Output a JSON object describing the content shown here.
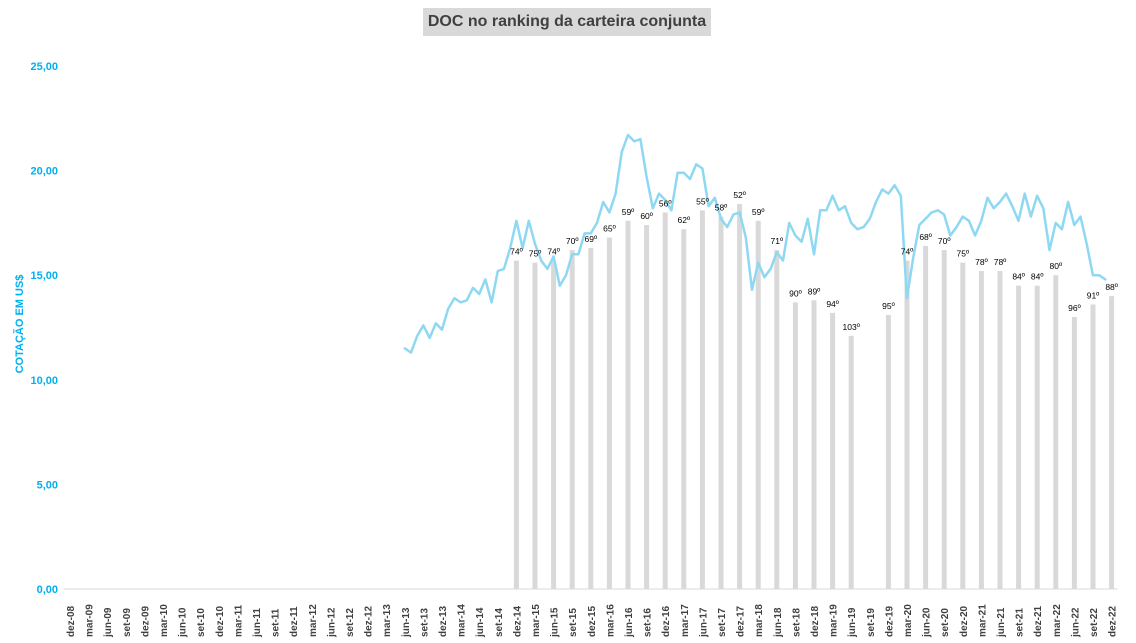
{
  "chart_data": {
    "type": "bar+line",
    "title": "DOC no ranking da carteira conjunta",
    "ylabel": "COTAÇÃO EM US$",
    "ylim": [
      0,
      25
    ],
    "y_ticks": [
      "0,00",
      "5,00",
      "10,00",
      "15,00",
      "20,00",
      "25,00"
    ],
    "x_tick_labels": [
      "dez-08",
      "mar-09",
      "jun-09",
      "set-09",
      "dez-09",
      "mar-10",
      "jun-10",
      "set-10",
      "dez-10",
      "mar-11",
      "jun-11",
      "set-11",
      "dez-11",
      "mar-12",
      "jun-12",
      "set-12",
      "dez-12",
      "mar-13",
      "jun-13",
      "set-13",
      "dez-13",
      "mar-14",
      "jun-14",
      "set-14",
      "dez-14",
      "mar-15",
      "jun-15",
      "set-15",
      "dez-15",
      "mar-16",
      "jun-16",
      "set-16",
      "dez-16",
      "mar-17",
      "jun-17",
      "set-17",
      "dez-17",
      "mar-18",
      "jun-18",
      "set-18",
      "dez-18",
      "mar-19",
      "jun-19",
      "set-19",
      "dez-19",
      "mar-20",
      "jun-20",
      "set-20",
      "dez-20",
      "mar-21",
      "jun-21",
      "set-21",
      "dez-21",
      "mar-22",
      "jun-22",
      "set-22",
      "dez-22"
    ],
    "grid": false,
    "bars": [
      {
        "q": 24,
        "value": 15.7,
        "label": "74º"
      },
      {
        "q": 25,
        "value": 15.6,
        "label": "75º"
      },
      {
        "q": 26,
        "value": 15.7,
        "label": "74º"
      },
      {
        "q": 27,
        "value": 16.2,
        "label": "70º"
      },
      {
        "q": 28,
        "value": 16.3,
        "label": "69º"
      },
      {
        "q": 29,
        "value": 16.8,
        "label": "65º"
      },
      {
        "q": 30,
        "value": 17.6,
        "label": "59º"
      },
      {
        "q": 31,
        "value": 17.4,
        "label": "60º"
      },
      {
        "q": 32,
        "value": 18.0,
        "label": "56º"
      },
      {
        "q": 33,
        "value": 17.2,
        "label": "62º"
      },
      {
        "q": 34,
        "value": 18.1,
        "label": "55º"
      },
      {
        "q": 35,
        "value": 17.8,
        "label": "58º"
      },
      {
        "q": 36,
        "value": 18.4,
        "label": "52º"
      },
      {
        "q": 37,
        "value": 17.6,
        "label": "59º"
      },
      {
        "q": 38,
        "value": 16.2,
        "label": "71º"
      },
      {
        "q": 39,
        "value": 13.7,
        "label": "90º"
      },
      {
        "q": 40,
        "value": 13.8,
        "label": "89º"
      },
      {
        "q": 41,
        "value": 13.2,
        "label": "94º"
      },
      {
        "q": 42,
        "value": 12.1,
        "label": "103º"
      },
      {
        "q": 44,
        "value": 13.1,
        "label": "95º"
      },
      {
        "q": 45,
        "value": 15.7,
        "label": "74º"
      },
      {
        "q": 46,
        "value": 16.4,
        "label": "68º"
      },
      {
        "q": 47,
        "value": 16.2,
        "label": "70º"
      },
      {
        "q": 48,
        "value": 15.6,
        "label": "75º"
      },
      {
        "q": 49,
        "value": 15.2,
        "label": "78º"
      },
      {
        "q": 50,
        "value": 15.2,
        "label": "78º"
      },
      {
        "q": 51,
        "value": 14.5,
        "label": "84º"
      },
      {
        "q": 52,
        "value": 14.5,
        "label": "84º"
      },
      {
        "q": 53,
        "value": 15.0,
        "label": "80º"
      },
      {
        "q": 54,
        "value": 13.0,
        "label": "96º"
      },
      {
        "q": 55,
        "value": 13.6,
        "label": "91º"
      },
      {
        "q": 56,
        "value": 14.0,
        "label": "88º"
      }
    ],
    "line_start_q": 18,
    "line_step_q": 0.3333,
    "line_values": [
      11.5,
      11.3,
      12.1,
      12.6,
      12.0,
      12.7,
      12.4,
      13.4,
      13.9,
      13.7,
      13.8,
      14.4,
      14.1,
      14.8,
      13.7,
      15.2,
      15.3,
      16.3,
      17.6,
      16.3,
      17.6,
      16.5,
      15.7,
      15.3,
      15.9,
      14.5,
      15.0,
      16.0,
      16.0,
      17.0,
      17.0,
      17.5,
      18.5,
      18.0,
      18.9,
      20.9,
      21.7,
      21.4,
      21.5,
      19.7,
      18.2,
      18.9,
      18.6,
      18.1,
      19.9,
      19.9,
      19.6,
      20.3,
      20.1,
      18.3,
      18.7,
      17.7,
      17.3,
      17.9,
      18.0,
      16.8,
      14.3,
      15.6,
      14.9,
      15.3,
      16.1,
      15.7,
      17.5,
      16.9,
      16.6,
      17.7,
      16.0,
      18.1,
      18.1,
      18.8,
      18.1,
      18.3,
      17.5,
      17.2,
      17.3,
      17.7,
      18.5,
      19.1,
      18.9,
      19.3,
      18.8,
      13.9,
      15.8,
      17.4,
      17.7,
      18.0,
      18.1,
      17.9,
      16.9,
      17.3,
      17.8,
      17.6,
      16.9,
      17.6,
      18.7,
      18.2,
      18.5,
      18.9,
      18.3,
      17.6,
      18.9,
      17.8,
      18.8,
      18.2,
      16.2,
      17.5,
      17.2,
      18.5,
      17.4,
      17.8,
      16.5,
      15.0,
      15.0,
      14.8
    ]
  },
  "colors": {
    "bar": "#d9d9d9",
    "line": "#8fd8f2",
    "axis_text": "#00b0f0",
    "tick_text": "#404040",
    "title_bg": "#d9d9d9"
  }
}
